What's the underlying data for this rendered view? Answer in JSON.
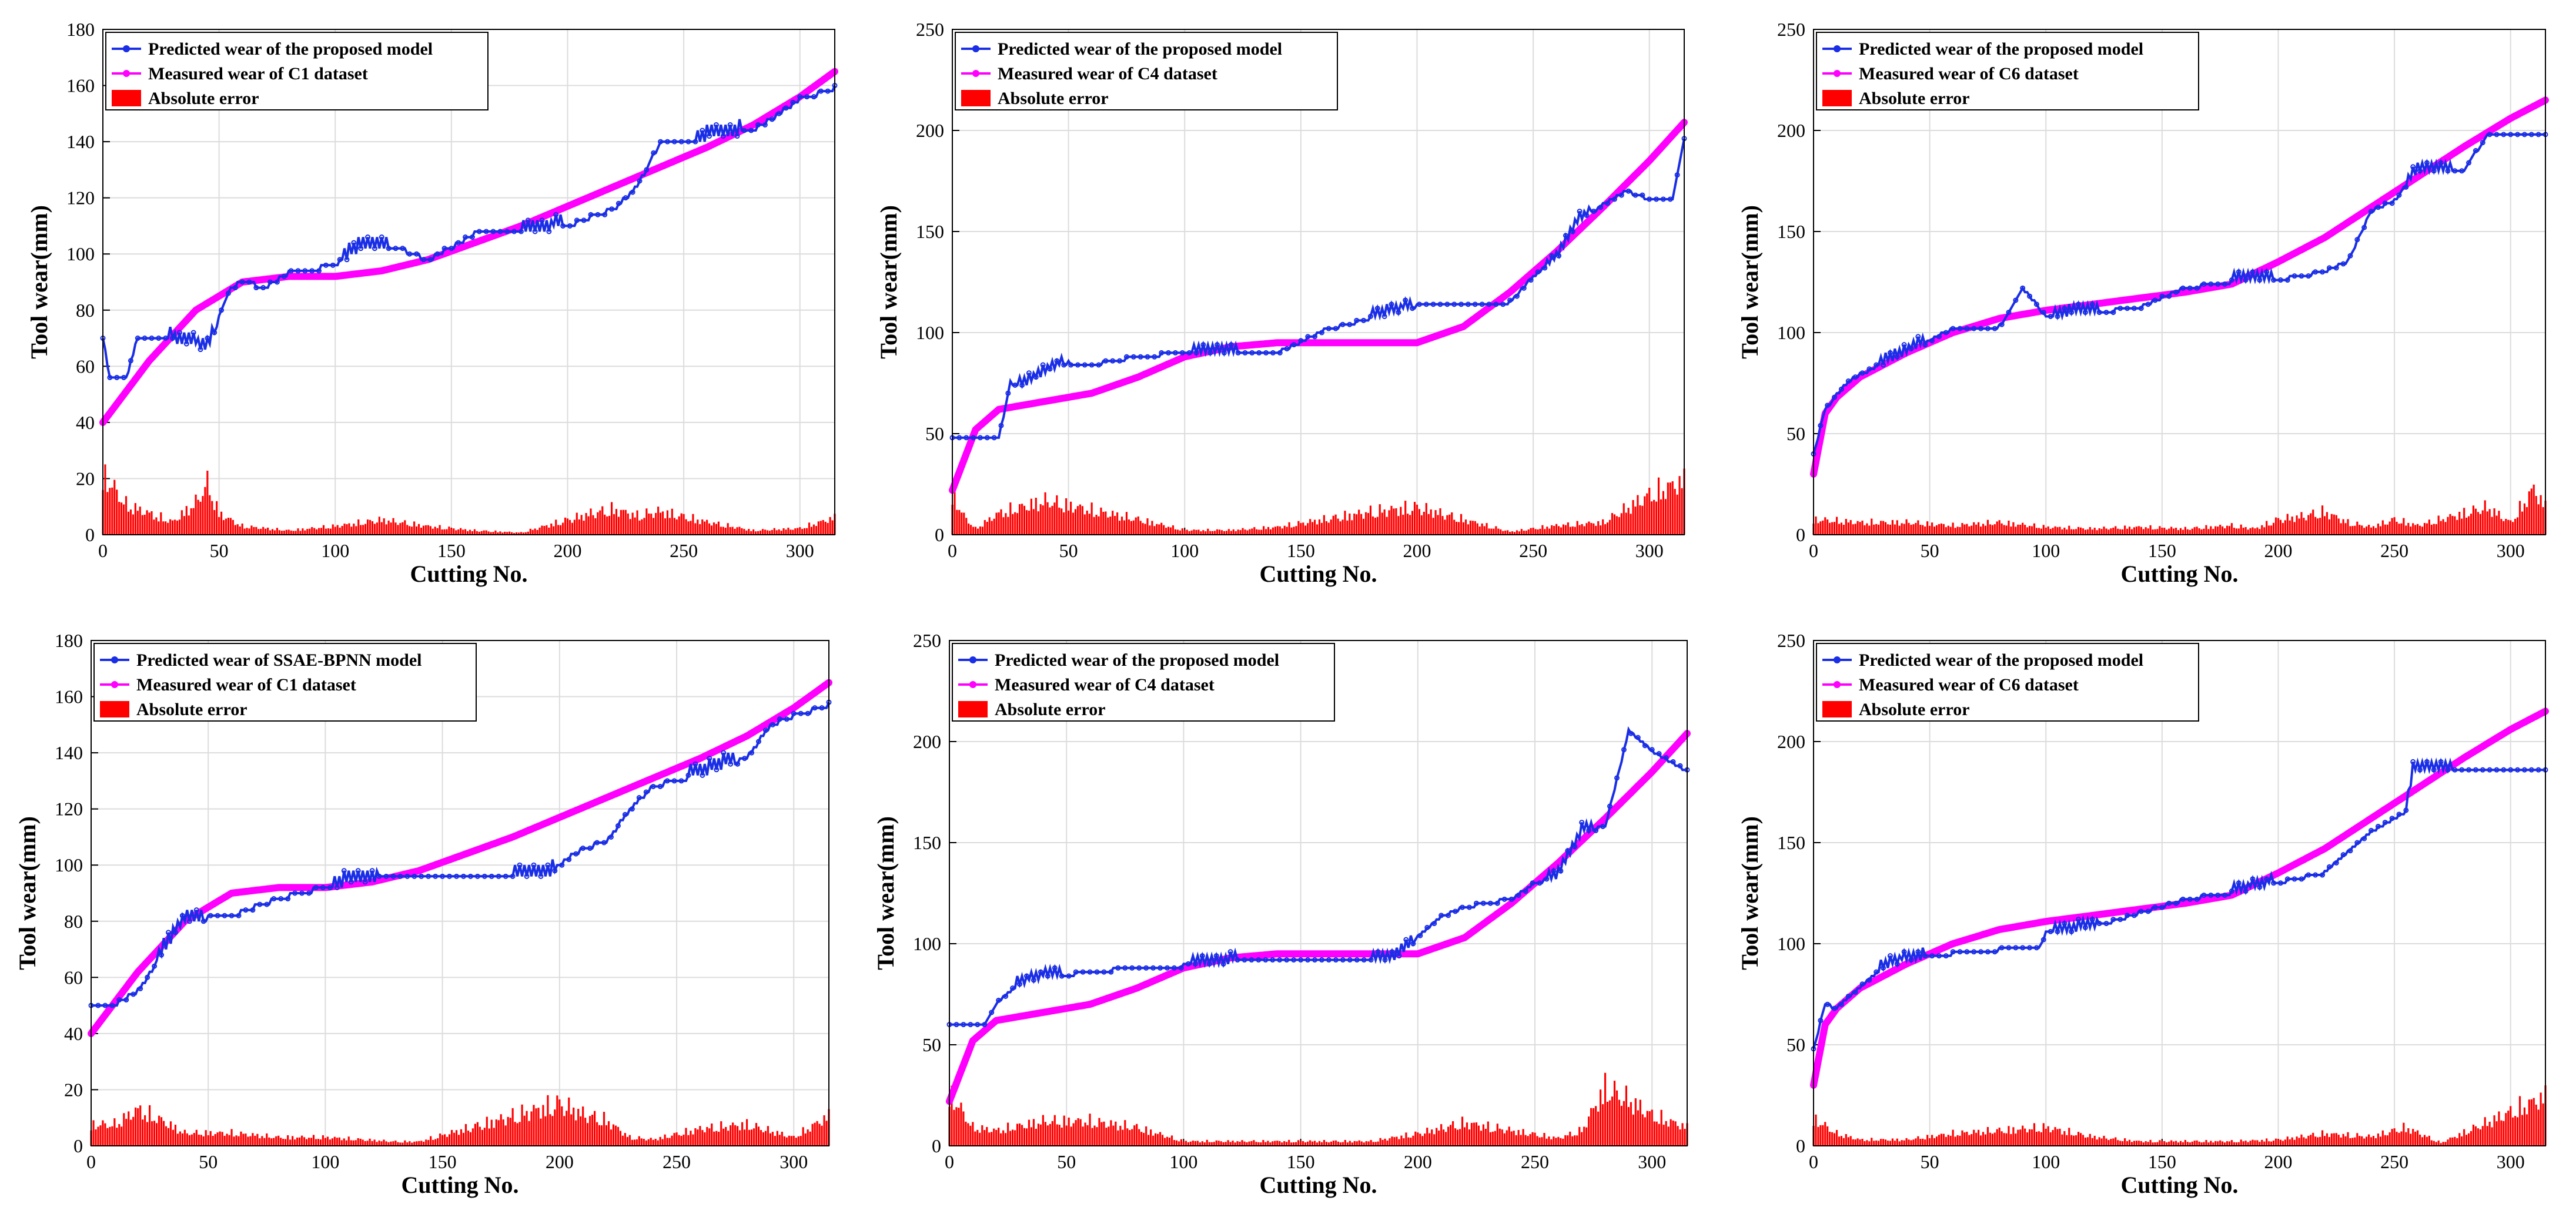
{
  "chart_data": [
    {
      "type": "line",
      "panel": "top-left",
      "xlabel": "Cutting No.",
      "ylabel": "Tool wear(mm)",
      "xlim": [
        0,
        315
      ],
      "ylim": [
        0,
        180
      ],
      "xticks": [
        0,
        50,
        100,
        150,
        200,
        250,
        300
      ],
      "yticks": [
        0,
        20,
        40,
        60,
        80,
        100,
        120,
        140,
        160,
        180
      ],
      "legend": [
        "Predicted wear of the proposed model",
        "Measured wear of C1 dataset",
        "Absolute error"
      ],
      "colors": {
        "predicted": "#1a2ee6",
        "measured": "#ff00ff",
        "error": "#ff0000"
      },
      "measured": {
        "x": [
          0,
          20,
          40,
          60,
          80,
          100,
          120,
          140,
          160,
          180,
          200,
          220,
          240,
          260,
          280,
          300,
          315
        ],
        "y": [
          40,
          62,
          80,
          90,
          92,
          92,
          94,
          98,
          104,
          110,
          117,
          124,
          131,
          138,
          146,
          156,
          165
        ]
      },
      "predicted": {
        "x": [
          0,
          3,
          10,
          15,
          25,
          35,
          45,
          50,
          55,
          60,
          70,
          80,
          100,
          110,
          130,
          140,
          160,
          180,
          200,
          210,
          220,
          230,
          240,
          260,
          280,
          300,
          315
        ],
        "y": [
          70,
          56,
          56,
          70,
          70,
          68,
          66,
          77,
          88,
          90,
          88,
          93,
          96,
          101,
          101,
          98,
          107,
          107,
          110,
          113,
          116,
          124,
          140,
          141,
          144,
          155,
          159
        ]
      },
      "error": {
        "x": [
          0,
          10,
          20,
          30,
          40,
          45,
          50,
          60,
          80,
          100,
          120,
          140,
          160,
          180,
          200,
          210,
          220,
          230,
          240,
          260,
          280,
          300,
          315
        ],
        "y": [
          29,
          14,
          10,
          6,
          15,
          24,
          10,
          4,
          2,
          4,
          7,
          4,
          2,
          1,
          7,
          10,
          12,
          9,
          11,
          6,
          2,
          3,
          8
        ]
      }
    },
    {
      "type": "line",
      "panel": "top-middle",
      "xlabel": "Cutting No.",
      "ylabel": "Tool wear(mm)",
      "xlim": [
        0,
        315
      ],
      "ylim": [
        0,
        250
      ],
      "xticks": [
        0,
        50,
        100,
        150,
        200,
        250,
        300
      ],
      "yticks": [
        0,
        50,
        100,
        150,
        200,
        250
      ],
      "legend": [
        "Predicted wear of the proposed model",
        "Measured wear of C4 dataset",
        "Absolute error"
      ],
      "colors": {
        "predicted": "#1a2ee6",
        "measured": "#ff00ff",
        "error": "#ff0000"
      },
      "measured": {
        "x": [
          0,
          10,
          20,
          40,
          60,
          80,
          100,
          120,
          140,
          160,
          180,
          200,
          220,
          240,
          260,
          280,
          300,
          315
        ],
        "y": [
          22,
          52,
          62,
          66,
          70,
          78,
          88,
          93,
          95,
          95,
          95,
          95,
          103,
          120,
          140,
          162,
          185,
          204
        ]
      },
      "predicted": {
        "x": [
          0,
          20,
          25,
          30,
          40,
          50,
          60,
          80,
          100,
          140,
          160,
          180,
          200,
          220,
          240,
          250,
          260,
          270,
          280,
          290,
          300,
          310,
          315
        ],
        "y": [
          48,
          48,
          75,
          73,
          80,
          85,
          84,
          88,
          90,
          90,
          101,
          107,
          113,
          113,
          115,
          128,
          136,
          155,
          163,
          170,
          166,
          166,
          195
        ]
      },
      "error": {
        "x": [
          0,
          5,
          10,
          20,
          40,
          60,
          80,
          100,
          120,
          140,
          160,
          180,
          200,
          220,
          240,
          260,
          280,
          300,
          315
        ],
        "y": [
          27,
          12,
          4,
          14,
          22,
          16,
          10,
          3,
          3,
          5,
          10,
          15,
          18,
          10,
          2,
          6,
          8,
          26,
          35
        ]
      }
    },
    {
      "type": "line",
      "panel": "top-right",
      "xlabel": "Cutting No.",
      "ylabel": "Tool wear(mm)",
      "xlim": [
        0,
        315
      ],
      "ylim": [
        0,
        250
      ],
      "xticks": [
        0,
        50,
        100,
        150,
        200,
        250,
        300
      ],
      "yticks": [
        0,
        50,
        100,
        150,
        200,
        250
      ],
      "legend": [
        "Predicted wear of the proposed model",
        "Measured wear of C6 dataset",
        "Absolute error"
      ],
      "colors": {
        "predicted": "#1a2ee6",
        "measured": "#ff00ff",
        "error": "#ff0000"
      },
      "measured": {
        "x": [
          0,
          5,
          10,
          20,
          40,
          60,
          80,
          100,
          120,
          140,
          160,
          180,
          200,
          220,
          240,
          260,
          280,
          300,
          315
        ],
        "y": [
          30,
          60,
          68,
          78,
          90,
          100,
          107,
          111,
          114,
          117,
          120,
          124,
          135,
          147,
          162,
          177,
          192,
          206,
          215
        ]
      },
      "predicted": {
        "x": [
          0,
          5,
          15,
          25,
          40,
          60,
          80,
          90,
          100,
          140,
          160,
          180,
          200,
          220,
          230,
          240,
          250,
          260,
          280,
          290,
          300,
          315
        ],
        "y": [
          40,
          62,
          76,
          82,
          90,
          102,
          103,
          122,
          108,
          112,
          122,
          125,
          126,
          130,
          135,
          160,
          165,
          180,
          180,
          198,
          198,
          198
        ]
      },
      "error": {
        "x": [
          0,
          20,
          40,
          60,
          80,
          100,
          120,
          140,
          160,
          180,
          190,
          200,
          210,
          220,
          230,
          240,
          250,
          260,
          270,
          280,
          290,
          300,
          310,
          315
        ],
        "y": [
          10,
          8,
          8,
          6,
          8,
          5,
          4,
          5,
          4,
          6,
          4,
          10,
          12,
          15,
          8,
          5,
          10,
          6,
          10,
          14,
          18,
          8,
          30,
          18
        ]
      }
    },
    {
      "type": "line",
      "panel": "bottom-left",
      "xlabel": "Cutting No.",
      "ylabel": "Tool wear(mm)",
      "xlim": [
        0,
        315
      ],
      "ylim": [
        0,
        180
      ],
      "xticks": [
        0,
        50,
        100,
        150,
        200,
        250,
        300
      ],
      "yticks": [
        0,
        20,
        40,
        60,
        80,
        100,
        120,
        140,
        160,
        180
      ],
      "legend": [
        "Predicted wear of SSAE-BPNN model",
        "Measured wear of C1 dataset",
        "Absolute error"
      ],
      "colors": {
        "predicted": "#1a2ee6",
        "measured": "#ff00ff",
        "error": "#ff0000"
      },
      "measured": {
        "x": [
          0,
          20,
          40,
          60,
          80,
          100,
          120,
          140,
          160,
          180,
          200,
          220,
          240,
          260,
          280,
          300,
          315
        ],
        "y": [
          40,
          62,
          80,
          90,
          92,
          92,
          94,
          98,
          104,
          110,
          117,
          124,
          131,
          138,
          146,
          156,
          165
        ]
      },
      "predicted": {
        "x": [
          0,
          10,
          20,
          30,
          40,
          60,
          80,
          100,
          130,
          140,
          195,
          200,
          210,
          220,
          230,
          240,
          260,
          280,
          290,
          300,
          315
        ],
        "y": [
          50,
          50,
          55,
          68,
          80,
          82,
          88,
          92,
          96,
          95,
          96,
          100,
          106,
          108,
          120,
          128,
          132,
          138,
          150,
          153,
          157
        ]
      },
      "error": {
        "x": [
          0,
          10,
          20,
          30,
          40,
          60,
          80,
          100,
          130,
          140,
          160,
          180,
          200,
          210,
          220,
          230,
          240,
          260,
          280,
          300,
          315
        ],
        "y": [
          10,
          10,
          17,
          12,
          6,
          6,
          4,
          4,
          2,
          2,
          8,
          14,
          20,
          15,
          12,
          4,
          3,
          8,
          10,
          4,
          14
        ]
      }
    },
    {
      "type": "line",
      "panel": "bottom-middle",
      "xlabel": "Cutting No.",
      "ylabel": "Tool wear(mm)",
      "xlim": [
        0,
        315
      ],
      "ylim": [
        0,
        250
      ],
      "xticks": [
        0,
        50,
        100,
        150,
        200,
        250,
        300
      ],
      "yticks": [
        0,
        50,
        100,
        150,
        200,
        250
      ],
      "legend": [
        "Predicted wear of the proposed model",
        "Measured wear of C4 dataset",
        "Absolute error"
      ],
      "colors": {
        "predicted": "#1a2ee6",
        "measured": "#ff00ff",
        "error": "#ff0000"
      },
      "measured": {
        "x": [
          0,
          10,
          20,
          40,
          60,
          80,
          100,
          120,
          140,
          160,
          180,
          200,
          220,
          240,
          260,
          280,
          300,
          315
        ],
        "y": [
          22,
          52,
          62,
          66,
          70,
          78,
          88,
          93,
          95,
          95,
          95,
          95,
          103,
          120,
          140,
          162,
          185,
          204
        ]
      },
      "predicted": {
        "x": [
          0,
          15,
          20,
          30,
          40,
          60,
          80,
          100,
          120,
          140,
          190,
          200,
          210,
          220,
          240,
          250,
          260,
          270,
          280,
          290,
          300,
          315
        ],
        "y": [
          60,
          60,
          70,
          80,
          83,
          86,
          88,
          89,
          91,
          92,
          92,
          103,
          113,
          118,
          122,
          130,
          133,
          155,
          158,
          205,
          195,
          185
        ]
      },
      "error": {
        "x": [
          0,
          10,
          20,
          40,
          60,
          80,
          100,
          120,
          140,
          160,
          180,
          200,
          220,
          240,
          260,
          270,
          280,
          290,
          300,
          315
        ],
        "y": [
          35,
          12,
          10,
          16,
          16,
          12,
          3,
          3,
          3,
          3,
          3,
          8,
          15,
          10,
          5,
          10,
          38,
          30,
          20,
          12
        ]
      }
    },
    {
      "type": "line",
      "panel": "bottom-right",
      "xlabel": "Cutting No.",
      "ylabel": "Tool wear(mm)",
      "xlim": [
        0,
        315
      ],
      "ylim": [
        0,
        250
      ],
      "xticks": [
        0,
        50,
        100,
        150,
        200,
        250,
        300
      ],
      "yticks": [
        0,
        50,
        100,
        150,
        200,
        250
      ],
      "legend": [
        "Predicted wear of the proposed model",
        "Measured wear of C6 dataset",
        "Absolute error"
      ],
      "colors": {
        "predicted": "#1a2ee6",
        "measured": "#ff00ff",
        "error": "#ff0000"
      },
      "measured": {
        "x": [
          0,
          5,
          10,
          20,
          40,
          60,
          80,
          100,
          120,
          140,
          160,
          180,
          200,
          220,
          240,
          260,
          280,
          300,
          315
        ],
        "y": [
          30,
          60,
          68,
          78,
          90,
          100,
          107,
          111,
          114,
          117,
          120,
          124,
          135,
          147,
          162,
          177,
          192,
          206,
          215
        ]
      },
      "predicted": {
        "x": [
          0,
          5,
          10,
          20,
          30,
          40,
          60,
          80,
          97,
          100,
          120,
          140,
          160,
          180,
          200,
          220,
          240,
          255,
          258,
          280,
          300,
          315
        ],
        "y": [
          48,
          70,
          68,
          78,
          88,
          92,
          95,
          97,
          97,
          105,
          108,
          115,
          122,
          125,
          130,
          135,
          155,
          165,
          185,
          185,
          185,
          185
        ]
      },
      "error": {
        "x": [
          0,
          10,
          20,
          40,
          60,
          80,
          100,
          120,
          140,
          160,
          180,
          200,
          220,
          240,
          255,
          270,
          285,
          300,
          315
        ],
        "y": [
          18,
          8,
          4,
          4,
          8,
          10,
          12,
          6,
          3,
          3,
          3,
          4,
          8,
          6,
          12,
          2,
          12,
          22,
          32
        ]
      }
    }
  ]
}
